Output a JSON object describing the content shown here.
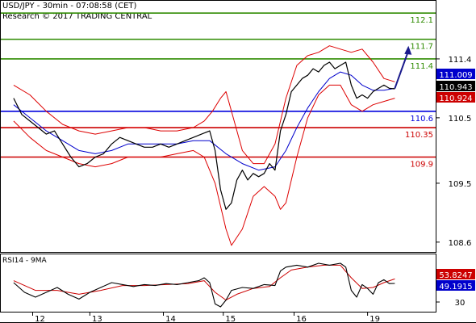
{
  "header": {
    "symbol_line": "USD/JPY - 30min - 07:08:58 (CET)",
    "copyright": "Research © 2017 TRADING CENTRAL"
  },
  "colors": {
    "resistance": "#2e8b00",
    "support": "#cc0000",
    "pivot": "#0000dd",
    "bollinger": "#dd0000",
    "moving_average": "#0000cc",
    "price": "#000000",
    "forecast_arrow": "#1a1a8c",
    "current_price_bg": "#000000",
    "bid_bg": "#0000cc",
    "ask_bg": "#cc0000",
    "rsi_line": "#000000",
    "rsi_ma": "#cc0000",
    "rsi_value_bg": "#0000cc",
    "rsi_ma_bg": "#cc0000"
  },
  "chart_data": {
    "type": "line",
    "title": "USD/JPY - 30min - 07:08:58 (CET)",
    "x_tick_labels": [
      "12",
      "13",
      "14",
      "15",
      "16",
      "19"
    ],
    "y_axis_labels": [
      111.4,
      110.5,
      109.5,
      108.6
    ],
    "ylim": [
      108.45,
      112.3
    ],
    "levels": [
      {
        "value": 112.1,
        "label": "112.1",
        "kind": "resistance"
      },
      {
        "value": 111.7,
        "label": "111.7",
        "kind": "resistance"
      },
      {
        "value": 111.4,
        "label": "111.4",
        "kind": "resistance"
      },
      {
        "value": 110.6,
        "label": "110.6",
        "kind": "pivot"
      },
      {
        "value": 110.35,
        "label": "110.35",
        "kind": "support"
      },
      {
        "value": 109.9,
        "label": "109.9",
        "kind": "support"
      }
    ],
    "price_tags": [
      {
        "value": 111.009,
        "label": "111.009",
        "kind": "bid"
      },
      {
        "value": 110.943,
        "label": "110.943",
        "kind": "current"
      },
      {
        "value": 110.924,
        "label": "110.924",
        "kind": "ask"
      }
    ],
    "price_series": [
      [
        0,
        110.8
      ],
      [
        3,
        110.55
      ],
      [
        6,
        110.45
      ],
      [
        9,
        110.35
      ],
      [
        12,
        110.25
      ],
      [
        15,
        110.3
      ],
      [
        18,
        110.1
      ],
      [
        21,
        109.9
      ],
      [
        24,
        109.75
      ],
      [
        27,
        109.8
      ],
      [
        30,
        109.9
      ],
      [
        33,
        109.95
      ],
      [
        36,
        110.1
      ],
      [
        39,
        110.2
      ],
      [
        42,
        110.15
      ],
      [
        45,
        110.1
      ],
      [
        48,
        110.05
      ],
      [
        51,
        110.05
      ],
      [
        54,
        110.1
      ],
      [
        57,
        110.05
      ],
      [
        60,
        110.1
      ],
      [
        63,
        110.15
      ],
      [
        66,
        110.2
      ],
      [
        69,
        110.25
      ],
      [
        72,
        110.3
      ],
      [
        74,
        110.0
      ],
      [
        76,
        109.4
      ],
      [
        78,
        109.1
      ],
      [
        80,
        109.2
      ],
      [
        82,
        109.55
      ],
      [
        84,
        109.7
      ],
      [
        86,
        109.55
      ],
      [
        88,
        109.65
      ],
      [
        90,
        109.6
      ],
      [
        92,
        109.65
      ],
      [
        94,
        109.8
      ],
      [
        96,
        109.7
      ],
      [
        98,
        110.3
      ],
      [
        100,
        110.55
      ],
      [
        102,
        110.9
      ],
      [
        104,
        111.0
      ],
      [
        106,
        111.1
      ],
      [
        108,
        111.15
      ],
      [
        110,
        111.25
      ],
      [
        112,
        111.2
      ],
      [
        114,
        111.3
      ],
      [
        116,
        111.35
      ],
      [
        118,
        111.25
      ],
      [
        120,
        111.3
      ],
      [
        122,
        111.35
      ],
      [
        124,
        111.0
      ],
      [
        126,
        110.8
      ],
      [
        128,
        110.85
      ],
      [
        130,
        110.8
      ],
      [
        132,
        110.9
      ],
      [
        134,
        110.95
      ],
      [
        136,
        111.0
      ],
      [
        138,
        110.95
      ],
      [
        140,
        110.943
      ]
    ],
    "ma_series": [
      [
        0,
        110.7
      ],
      [
        6,
        110.5
      ],
      [
        12,
        110.3
      ],
      [
        18,
        110.15
      ],
      [
        24,
        110.0
      ],
      [
        30,
        109.95
      ],
      [
        36,
        110.0
      ],
      [
        42,
        110.1
      ],
      [
        48,
        110.1
      ],
      [
        54,
        110.1
      ],
      [
        60,
        110.1
      ],
      [
        66,
        110.15
      ],
      [
        72,
        110.15
      ],
      [
        78,
        109.95
      ],
      [
        84,
        109.8
      ],
      [
        90,
        109.7
      ],
      [
        96,
        109.75
      ],
      [
        100,
        110.0
      ],
      [
        104,
        110.35
      ],
      [
        108,
        110.65
      ],
      [
        112,
        110.9
      ],
      [
        116,
        111.1
      ],
      [
        120,
        111.2
      ],
      [
        124,
        111.15
      ],
      [
        128,
        111.0
      ],
      [
        132,
        110.92
      ],
      [
        136,
        110.92
      ],
      [
        140,
        110.95
      ]
    ],
    "bollinger_upper": [
      [
        0,
        111.0
      ],
      [
        6,
        110.85
      ],
      [
        12,
        110.6
      ],
      [
        18,
        110.4
      ],
      [
        24,
        110.3
      ],
      [
        30,
        110.25
      ],
      [
        36,
        110.3
      ],
      [
        42,
        110.35
      ],
      [
        48,
        110.35
      ],
      [
        54,
        110.3
      ],
      [
        60,
        110.3
      ],
      [
        66,
        110.35
      ],
      [
        70,
        110.45
      ],
      [
        73,
        110.6
      ],
      [
        76,
        110.8
      ],
      [
        78,
        110.9
      ],
      [
        80,
        110.6
      ],
      [
        84,
        110.0
      ],
      [
        88,
        109.8
      ],
      [
        92,
        109.8
      ],
      [
        96,
        110.1
      ],
      [
        100,
        110.8
      ],
      [
        104,
        111.3
      ],
      [
        108,
        111.45
      ],
      [
        112,
        111.5
      ],
      [
        116,
        111.6
      ],
      [
        120,
        111.55
      ],
      [
        124,
        111.5
      ],
      [
        128,
        111.55
      ],
      [
        132,
        111.35
      ],
      [
        136,
        111.1
      ],
      [
        140,
        111.05
      ]
    ],
    "bollinger_lower": [
      [
        0,
        110.45
      ],
      [
        6,
        110.2
      ],
      [
        12,
        110.0
      ],
      [
        18,
        109.9
      ],
      [
        24,
        109.8
      ],
      [
        30,
        109.75
      ],
      [
        36,
        109.8
      ],
      [
        42,
        109.9
      ],
      [
        48,
        109.9
      ],
      [
        54,
        109.9
      ],
      [
        60,
        109.95
      ],
      [
        66,
        110.0
      ],
      [
        70,
        109.9
      ],
      [
        74,
        109.5
      ],
      [
        78,
        108.8
      ],
      [
        80,
        108.55
      ],
      [
        84,
        108.8
      ],
      [
        88,
        109.3
      ],
      [
        92,
        109.45
      ],
      [
        96,
        109.3
      ],
      [
        98,
        109.1
      ],
      [
        100,
        109.2
      ],
      [
        104,
        109.9
      ],
      [
        108,
        110.5
      ],
      [
        112,
        110.85
      ],
      [
        116,
        111.0
      ],
      [
        120,
        111.0
      ],
      [
        124,
        110.7
      ],
      [
        128,
        110.6
      ],
      [
        132,
        110.7
      ],
      [
        136,
        110.75
      ],
      [
        140,
        110.8
      ]
    ],
    "forecast_arrow": {
      "from": [
        140,
        110.95
      ],
      "to": [
        145,
        111.6
      ]
    },
    "x_ticks": [
      {
        "label": "12",
        "x": 7
      },
      {
        "label": "13",
        "x": 28
      },
      {
        "label": "14",
        "x": 55
      },
      {
        "label": "15",
        "x": 77
      },
      {
        "label": "16",
        "x": 103
      },
      {
        "label": "19",
        "x": 130
      }
    ],
    "xlim": [
      -5,
      155
    ],
    "rsi": {
      "title": "RSI14 - 9MA",
      "y_axis_labels": [
        30
      ],
      "ylim": [
        20,
        80
      ],
      "value_tags": [
        {
          "value": 53.8247,
          "label": "53.8247",
          "kind": "ma"
        },
        {
          "value": 49.1915,
          "label": "49.1915",
          "kind": "rsi"
        }
      ],
      "rsi_series": [
        [
          0,
          50
        ],
        [
          4,
          40
        ],
        [
          8,
          35
        ],
        [
          12,
          40
        ],
        [
          16,
          45
        ],
        [
          20,
          38
        ],
        [
          24,
          33
        ],
        [
          28,
          40
        ],
        [
          32,
          45
        ],
        [
          36,
          50
        ],
        [
          40,
          48
        ],
        [
          44,
          46
        ],
        [
          48,
          48
        ],
        [
          52,
          47
        ],
        [
          56,
          49
        ],
        [
          60,
          48
        ],
        [
          64,
          50
        ],
        [
          68,
          52
        ],
        [
          70,
          55
        ],
        [
          72,
          50
        ],
        [
          74,
          28
        ],
        [
          76,
          25
        ],
        [
          78,
          32
        ],
        [
          80,
          42
        ],
        [
          84,
          45
        ],
        [
          88,
          44
        ],
        [
          92,
          48
        ],
        [
          96,
          47
        ],
        [
          98,
          62
        ],
        [
          100,
          66
        ],
        [
          104,
          68
        ],
        [
          108,
          66
        ],
        [
          112,
          70
        ],
        [
          116,
          68
        ],
        [
          120,
          70
        ],
        [
          122,
          66
        ],
        [
          124,
          42
        ],
        [
          126,
          35
        ],
        [
          128,
          48
        ],
        [
          130,
          44
        ],
        [
          132,
          38
        ],
        [
          134,
          50
        ],
        [
          136,
          53
        ],
        [
          138,
          49
        ],
        [
          140,
          49.19
        ]
      ],
      "ma_series": [
        [
          0,
          52
        ],
        [
          8,
          42
        ],
        [
          16,
          42
        ],
        [
          24,
          38
        ],
        [
          32,
          42
        ],
        [
          40,
          47
        ],
        [
          48,
          47
        ],
        [
          56,
          48
        ],
        [
          64,
          49
        ],
        [
          70,
          52
        ],
        [
          74,
          40
        ],
        [
          78,
          32
        ],
        [
          82,
          38
        ],
        [
          88,
          44
        ],
        [
          94,
          46
        ],
        [
          98,
          55
        ],
        [
          102,
          63
        ],
        [
          108,
          66
        ],
        [
          114,
          68
        ],
        [
          120,
          68
        ],
        [
          124,
          55
        ],
        [
          128,
          44
        ],
        [
          132,
          45
        ],
        [
          136,
          50
        ],
        [
          140,
          53.82
        ]
      ]
    }
  }
}
